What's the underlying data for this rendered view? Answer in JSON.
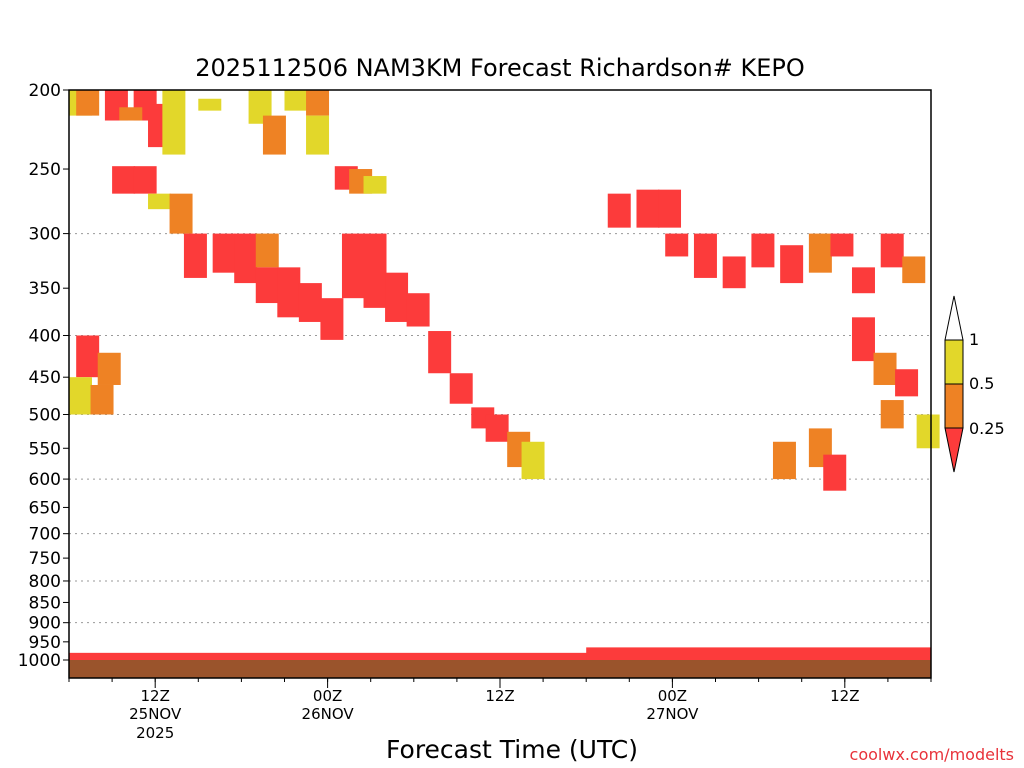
{
  "chart_data": {
    "type": "heatmap",
    "title": "2025112506 NAM3KM Forecast Richardson# KEPO",
    "xlabel": "Forecast Time (UTC)",
    "ylabel": "",
    "y_scale": "log",
    "y_inverted": true,
    "ylim": [
      1000,
      200
    ],
    "yticks": [
      200,
      250,
      300,
      350,
      400,
      450,
      500,
      550,
      600,
      650,
      700,
      750,
      800,
      850,
      900,
      950,
      1000
    ],
    "x_ticks": [
      {
        "label": "12Z",
        "date": "25NOV",
        "year": "2025",
        "hour": 6
      },
      {
        "label": "00Z",
        "date": "26NOV",
        "year": "",
        "hour": 18
      },
      {
        "label": "12Z",
        "date": "",
        "year": "",
        "hour": 30
      },
      {
        "label": "00Z",
        "date": "27NOV",
        "year": "",
        "hour": 42
      },
      {
        "label": "12Z",
        "date": "",
        "year": "",
        "hour": 54
      }
    ],
    "xlim": [
      0,
      60
    ],
    "grid": "dotted horizontal lines at 300, 400, 500, 600, 700, 800 and 900 hPa",
    "legend_position": "right",
    "colorbar": {
      "labels": [
        "1",
        "0.5",
        "0.25"
      ],
      "bins": [
        {
          "range": "0.5-1",
          "color": "#e2d72a"
        },
        {
          "range": "0.25-0.5",
          "color": "#ee8224"
        },
        {
          "range": "<0.25",
          "color": "#fc3b3b"
        }
      ]
    },
    "colors": {
      "red": "#fc3b3b",
      "orange": "#ee8224",
      "yellow": "#e2d72a",
      "ground": "#9a542c"
    },
    "cells": [
      {
        "t": 0.5,
        "p0": 200,
        "p1": 215,
        "c": "yellow"
      },
      {
        "t": 1,
        "p0": 200,
        "p1": 215,
        "c": "orange"
      },
      {
        "t": 3,
        "p0": 200,
        "p1": 218,
        "c": "red"
      },
      {
        "t": 5,
        "p0": 200,
        "p1": 218,
        "c": "red"
      },
      {
        "t": 4,
        "p0": 210,
        "p1": 218,
        "c": "orange"
      },
      {
        "t": 6,
        "p0": 208,
        "p1": 235,
        "c": "red"
      },
      {
        "t": 7,
        "p0": 200,
        "p1": 240,
        "c": "yellow"
      },
      {
        "t": 9.5,
        "p0": 205,
        "p1": 212,
        "c": "yellow"
      },
      {
        "t": 13,
        "p0": 200,
        "p1": 220,
        "c": "yellow"
      },
      {
        "t": 14,
        "p0": 215,
        "p1": 240,
        "c": "orange"
      },
      {
        "t": 15.5,
        "p0": 200,
        "p1": 212,
        "c": "yellow"
      },
      {
        "t": 17,
        "p0": 200,
        "p1": 215,
        "c": "orange"
      },
      {
        "t": 17,
        "p0": 215,
        "p1": 240,
        "c": "yellow"
      },
      {
        "t": 19,
        "p0": 248,
        "p1": 265,
        "c": "red"
      },
      {
        "t": 20,
        "p0": 250,
        "p1": 268,
        "c": "orange"
      },
      {
        "t": 21,
        "p0": 255,
        "p1": 268,
        "c": "yellow"
      },
      {
        "t": 3.5,
        "p0": 248,
        "p1": 268,
        "c": "red"
      },
      {
        "t": 5,
        "p0": 248,
        "p1": 268,
        "c": "red"
      },
      {
        "t": 6,
        "p0": 268,
        "p1": 280,
        "c": "yellow"
      },
      {
        "t": 7.5,
        "p0": 268,
        "p1": 300,
        "c": "orange"
      },
      {
        "t": 8.5,
        "p0": 300,
        "p1": 340,
        "c": "red"
      },
      {
        "t": 10.5,
        "p0": 300,
        "p1": 335,
        "c": "red"
      },
      {
        "t": 12,
        "p0": 300,
        "p1": 345,
        "c": "red"
      },
      {
        "t": 13.5,
        "p0": 300,
        "p1": 330,
        "c": "orange"
      },
      {
        "t": 13.5,
        "p0": 330,
        "p1": 365,
        "c": "red"
      },
      {
        "t": 15,
        "p0": 330,
        "p1": 380,
        "c": "red"
      },
      {
        "t": 16.5,
        "p0": 345,
        "p1": 385,
        "c": "red"
      },
      {
        "t": 18,
        "p0": 360,
        "p1": 405,
        "c": "red"
      },
      {
        "t": 19.5,
        "p0": 300,
        "p1": 360,
        "c": "red"
      },
      {
        "t": 21,
        "p0": 300,
        "p1": 370,
        "c": "red"
      },
      {
        "t": 22.5,
        "p0": 335,
        "p1": 385,
        "c": "red"
      },
      {
        "t": 24,
        "p0": 355,
        "p1": 390,
        "c": "red"
      },
      {
        "t": 25.5,
        "p0": 395,
        "p1": 445,
        "c": "red"
      },
      {
        "t": 27,
        "p0": 445,
        "p1": 485,
        "c": "red"
      },
      {
        "t": 28.5,
        "p0": 490,
        "p1": 520,
        "c": "red"
      },
      {
        "t": 29.5,
        "p0": 500,
        "p1": 540,
        "c": "red"
      },
      {
        "t": 31,
        "p0": 525,
        "p1": 580,
        "c": "orange"
      },
      {
        "t": 32,
        "p0": 540,
        "p1": 600,
        "c": "yellow"
      },
      {
        "t": 38,
        "p0": 268,
        "p1": 295,
        "c": "red"
      },
      {
        "t": 40,
        "p0": 265,
        "p1": 295,
        "c": "red"
      },
      {
        "t": 41.5,
        "p0": 265,
        "p1": 295,
        "c": "red"
      },
      {
        "t": 42,
        "p0": 300,
        "p1": 320,
        "c": "red"
      },
      {
        "t": 44,
        "p0": 300,
        "p1": 340,
        "c": "red"
      },
      {
        "t": 46,
        "p0": 320,
        "p1": 350,
        "c": "red"
      },
      {
        "t": 48,
        "p0": 300,
        "p1": 330,
        "c": "red"
      },
      {
        "t": 50,
        "p0": 310,
        "p1": 345,
        "c": "red"
      },
      {
        "t": 52,
        "p0": 300,
        "p1": 335,
        "c": "orange"
      },
      {
        "t": 53.5,
        "p0": 300,
        "p1": 320,
        "c": "red"
      },
      {
        "t": 55,
        "p0": 330,
        "p1": 355,
        "c": "red"
      },
      {
        "t": 57,
        "p0": 300,
        "p1": 330,
        "c": "red"
      },
      {
        "t": 58.5,
        "p0": 320,
        "p1": 345,
        "c": "orange"
      },
      {
        "t": 55,
        "p0": 380,
        "p1": 430,
        "c": "red"
      },
      {
        "t": 56.5,
        "p0": 420,
        "p1": 460,
        "c": "orange"
      },
      {
        "t": 58,
        "p0": 440,
        "p1": 475,
        "c": "red"
      },
      {
        "t": 57,
        "p0": 480,
        "p1": 520,
        "c": "orange"
      },
      {
        "t": 59.5,
        "p0": 500,
        "p1": 550,
        "c": "yellow"
      },
      {
        "t": 49.5,
        "p0": 540,
        "p1": 600,
        "c": "orange"
      },
      {
        "t": 52,
        "p0": 520,
        "p1": 580,
        "c": "orange"
      },
      {
        "t": 53,
        "p0": 560,
        "p1": 620,
        "c": "red"
      },
      {
        "t": 1,
        "p0": 400,
        "p1": 450,
        "c": "red"
      },
      {
        "t": 2.5,
        "p0": 420,
        "p1": 460,
        "c": "orange"
      },
      {
        "t": 0.5,
        "p0": 450,
        "p1": 500,
        "c": "yellow"
      },
      {
        "t": 2,
        "p0": 460,
        "p1": 500,
        "c": "orange"
      }
    ]
  }
}
